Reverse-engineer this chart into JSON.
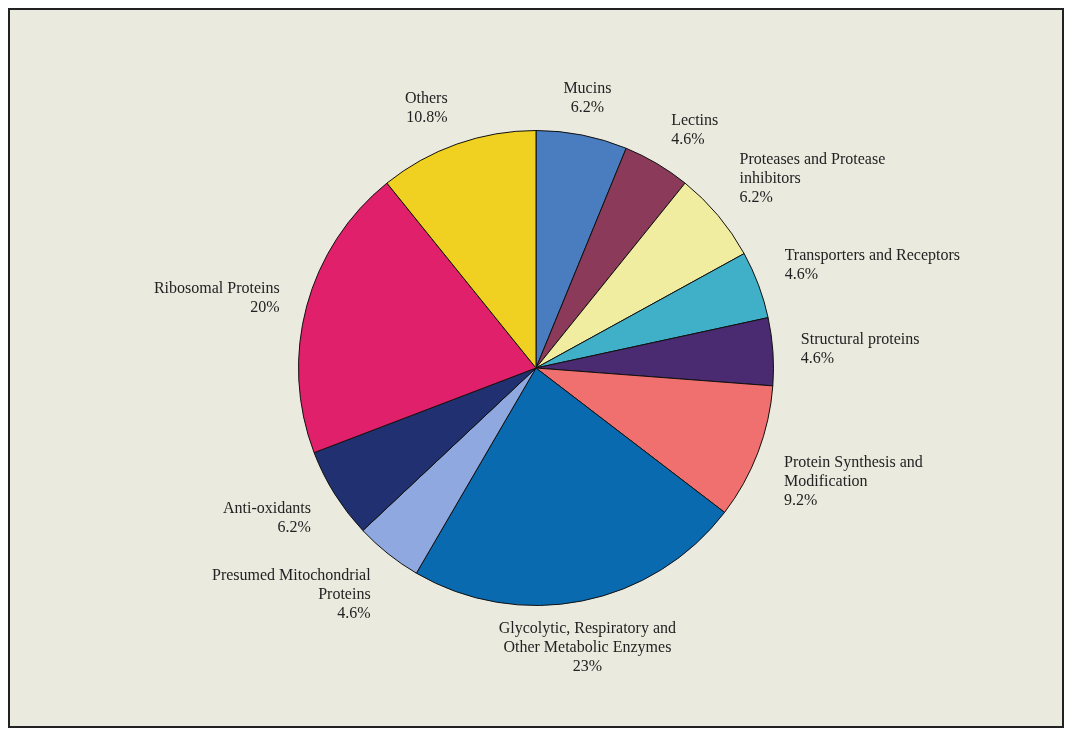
{
  "chart_data": {
    "type": "pie",
    "categories": [
      "Mucins",
      "Lectins",
      "Proteases and Protease inhibitors",
      "Transporters and Receptors",
      "Structural proteins",
      "Protein Synthesis and Modification",
      "Glycolytic, Respiratory and Other Metabolic Enzymes",
      "Presumed Mitochondrial Proteins",
      "Anti-oxidants",
      "Ribosomal Proteins",
      "Others"
    ],
    "values": [
      6.2,
      4.6,
      6.2,
      4.6,
      4.6,
      9.2,
      23,
      4.6,
      6.2,
      20,
      10.8
    ],
    "value_labels": [
      "6.2%",
      "4.6%",
      "6.2%",
      "4.6%",
      "4.6%",
      "9.2%",
      "23%",
      "4.6%",
      "6.2%",
      "20%",
      "10.8%"
    ],
    "colors": [
      "#4a7cc0",
      "#8b3a5a",
      "#f0eda0",
      "#40b0c8",
      "#4a2a70",
      "#f07070",
      "#0a6ab0",
      "#90a8e0",
      "#203070",
      "#e0206a",
      "#f0d020"
    ],
    "legend": false
  }
}
